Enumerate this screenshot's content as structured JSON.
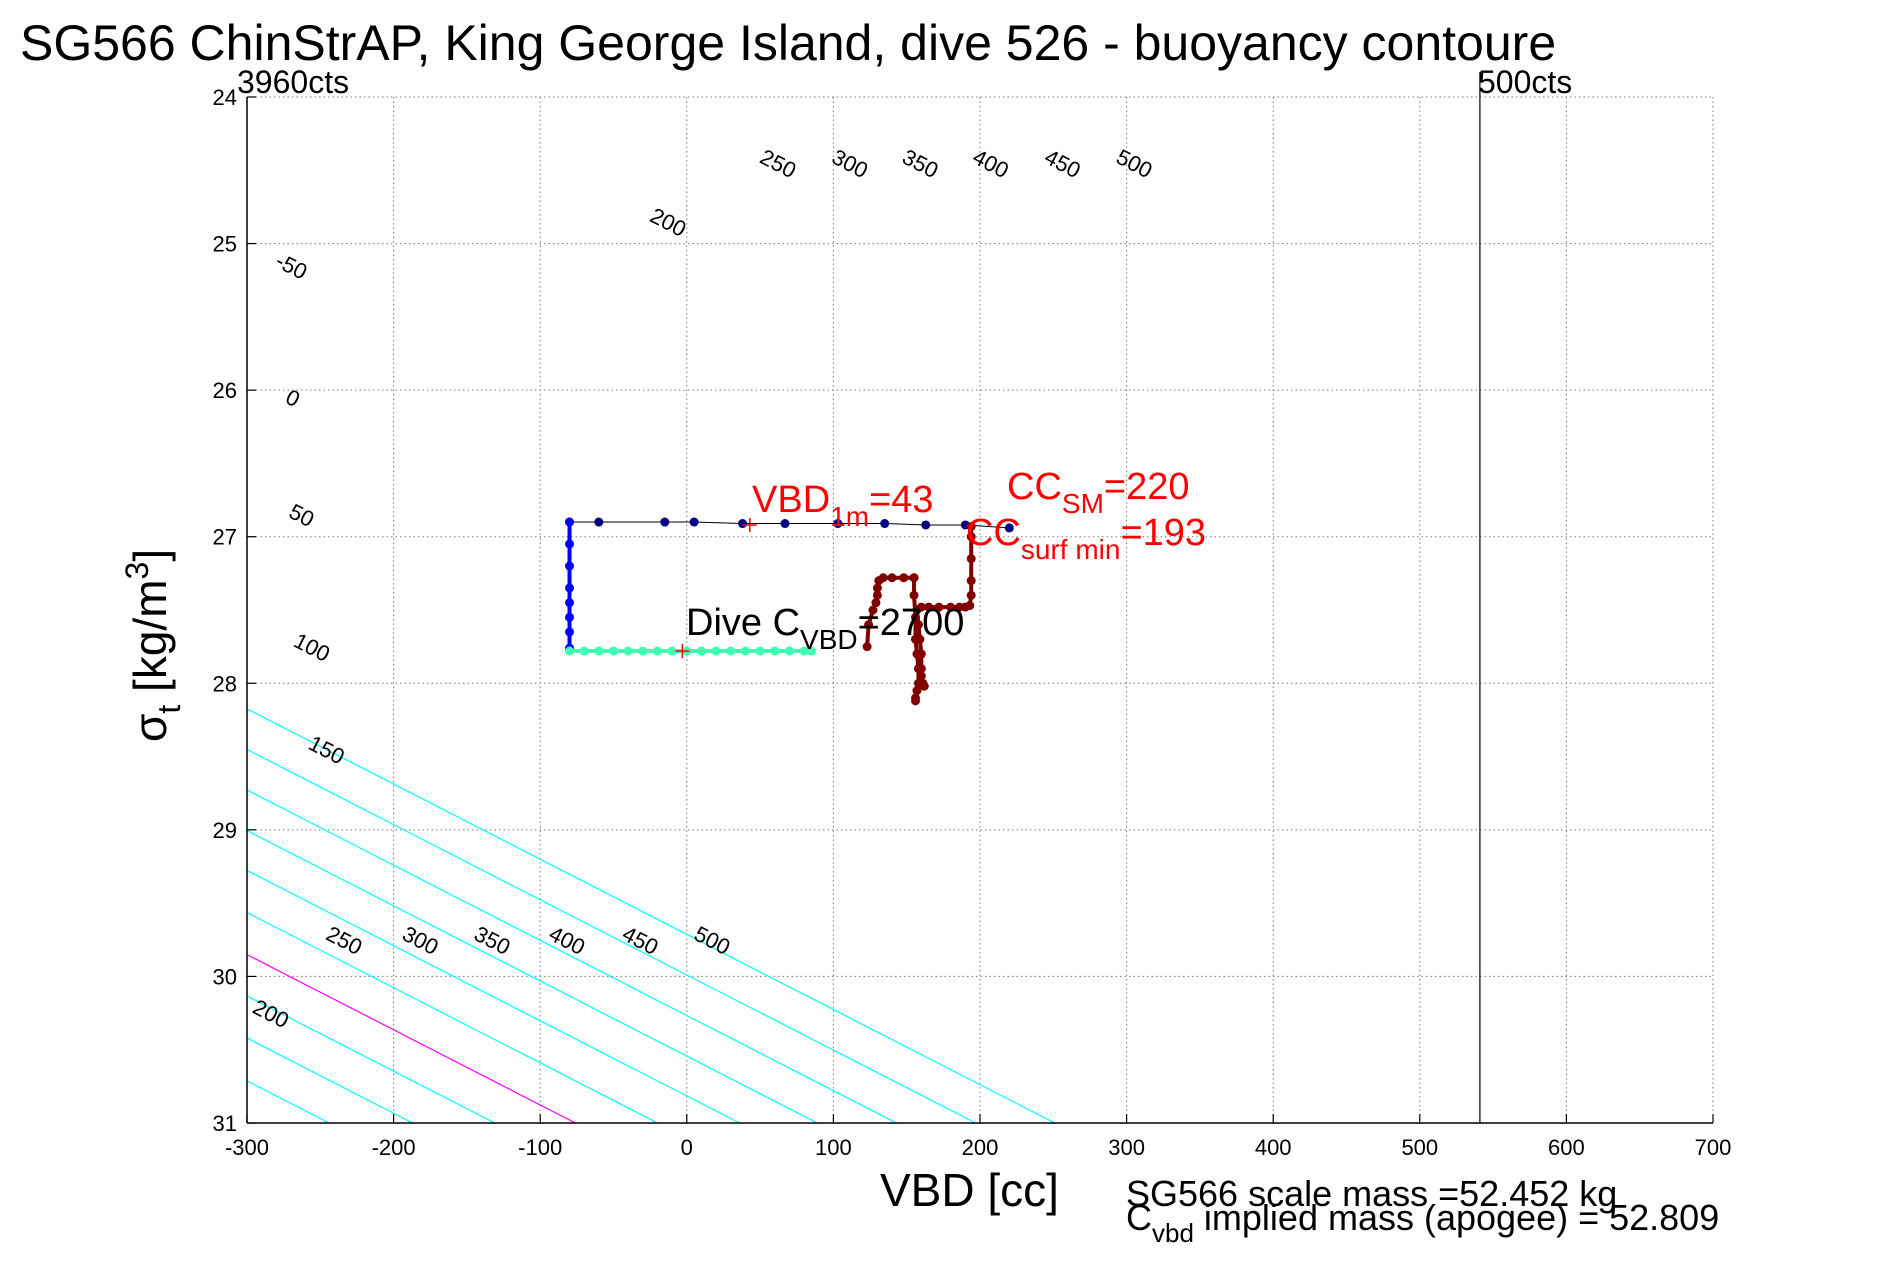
{
  "figure": {
    "title": "SG566 ChinStrAP, King George Island, dive 526 - buoyancy contoure",
    "top_left_label": "3960cts",
    "top_right_label": "500cts",
    "footer": {
      "line1": "SG566 scale mass =52.452 kg",
      "line2_main": "C",
      "line2_sub": "vbd",
      "line2_rest": " implied mass (apogee) = 52.809"
    }
  },
  "annotations": {
    "vbd1m": {
      "main": "VBD",
      "sub": "1m",
      "rest": "=43"
    },
    "ccsm": {
      "main": "CC",
      "sub": "SM",
      "rest": "=220"
    },
    "ccsurf": {
      "main": "CC",
      "sub": "surf min",
      "rest": "=193"
    },
    "divec": {
      "main": "Dive C",
      "sub": "VBD",
      "rest": "=2700"
    }
  },
  "colors": {
    "cyan": "#00ffff",
    "blue": "#0000ff",
    "magenta": "#ff00ff",
    "red": "#ff0000",
    "darkred": "#800000",
    "navy": "#000080",
    "teal": "#40ffb0",
    "background": "#ffffff",
    "axis": "#000000"
  },
  "chart_data": {
    "type": "line",
    "xlabel": "VBD [cc]",
    "ylabel": {
      "main": "σ",
      "sub": "t",
      "rest": " [kg/m",
      "sup": "3",
      "end": "]"
    },
    "xlim": [
      -300,
      700
    ],
    "ylim": [
      24,
      31
    ],
    "y_reversed": true,
    "grid": true,
    "xticks": [
      -300,
      -200,
      -100,
      0,
      100,
      200,
      300,
      400,
      500,
      600,
      700
    ],
    "yticks": [
      24,
      25,
      26,
      27,
      28,
      29,
      30,
      31
    ],
    "xtick_labels": [
      "-300",
      "-200",
      "-100",
      "0",
      "100",
      "200",
      "300",
      "400",
      "500",
      "600",
      "700"
    ],
    "ytick_labels": [
      "24",
      "25",
      "26",
      "27",
      "28",
      "29",
      "30",
      "31"
    ],
    "vertical_line_x": 541,
    "contour_slope_cc_per_sigma": 195,
    "contours": [
      {
        "value": -50,
        "x_at_31": -363,
        "color": "cyan",
        "label": "-50",
        "label_x": -272,
        "label_y": 25.2
      },
      {
        "value": 0,
        "x_at_31": -301,
        "color": "blue",
        "label": "0",
        "label_x": -271,
        "label_y": 26.1
      },
      {
        "value": 50,
        "x_at_31": -244,
        "color": "cyan",
        "label": "50",
        "label_x": -265,
        "label_y": 26.9
      },
      {
        "value": 100,
        "x_at_31": -187,
        "color": "cyan",
        "label": "100",
        "label_x": -258,
        "label_y": 27.8
      },
      {
        "value": 150,
        "x_at_31": -131,
        "color": "cyan",
        "label": "150",
        "label_x": -248,
        "label_y": 28.5
      },
      {
        "value": 200,
        "x_at_31": -76,
        "color": "magenta",
        "label": "200",
        "label_x": -286,
        "label_y": 30.3,
        "label2_x": -15,
        "label2_y": 24.9
      },
      {
        "value": 250,
        "x_at_31": -20,
        "color": "cyan",
        "label": "250",
        "label_x": -236,
        "label_y": 29.8,
        "label2_x": 60,
        "label2_y": 24.5
      },
      {
        "value": 300,
        "x_at_31": 36,
        "color": "cyan",
        "label": "300",
        "label_x": -184,
        "label_y": 29.8,
        "label2_x": 109,
        "label2_y": 24.5
      },
      {
        "value": 350,
        "x_at_31": 89,
        "color": "cyan",
        "label": "350",
        "label_x": -135,
        "label_y": 29.8,
        "label2_x": 157,
        "label2_y": 24.5
      },
      {
        "value": 400,
        "x_at_31": 143,
        "color": "cyan",
        "label": "400",
        "label_x": -84,
        "label_y": 29.8,
        "label2_x": 205,
        "label2_y": 24.5
      },
      {
        "value": 450,
        "x_at_31": 197,
        "color": "cyan",
        "label": "450",
        "label_x": -34,
        "label_y": 29.8,
        "label2_x": 254,
        "label2_y": 24.5
      },
      {
        "value": 500,
        "x_at_31": 251,
        "color": "cyan",
        "label": "500",
        "label_x": 15,
        "label_y": 29.8,
        "label2_x": 303,
        "label2_y": 24.5
      }
    ],
    "series": [
      {
        "name": "apogee-top",
        "color": "navy",
        "x": [
          -80,
          -60,
          -15,
          5,
          38,
          67,
          103,
          135,
          163,
          190,
          220
        ],
        "y": [
          26.9,
          26.9,
          26.9,
          26.9,
          26.91,
          26.91,
          26.91,
          26.91,
          26.92,
          26.92,
          26.94
        ]
      },
      {
        "name": "apogee-left",
        "color": "blue",
        "x": [
          -80,
          -80,
          -80,
          -80,
          -80,
          -80,
          -80,
          -80
        ],
        "y": [
          26.9,
          27.05,
          27.2,
          27.35,
          27.45,
          27.55,
          27.65,
          27.76
        ]
      },
      {
        "name": "apogee-bottom",
        "color": "teal",
        "x": [
          -80,
          -70,
          -60,
          -50,
          -40,
          -30,
          -20,
          -10,
          0,
          10,
          20,
          30,
          40,
          50,
          60,
          70,
          80,
          85
        ],
        "y": [
          27.78,
          27.78,
          27.78,
          27.78,
          27.78,
          27.78,
          27.78,
          27.78,
          27.78,
          27.78,
          27.78,
          27.78,
          27.78,
          27.78,
          27.78,
          27.78,
          27.78,
          27.78
        ]
      },
      {
        "name": "climb-a",
        "color": "darkred",
        "x": [
          123,
          124,
          127,
          129,
          130,
          130,
          131,
          134,
          140,
          148,
          155
        ],
        "y": [
          27.75,
          27.6,
          27.5,
          27.45,
          27.4,
          27.35,
          27.3,
          27.28,
          27.28,
          27.28,
          27.28
        ]
      },
      {
        "name": "climb-b",
        "color": "darkred",
        "x": [
          155,
          155,
          156,
          156,
          157,
          158,
          158,
          157,
          156,
          156
        ],
        "y": [
          27.28,
          27.4,
          27.55,
          27.7,
          27.8,
          27.9,
          28.0,
          28.05,
          28.1,
          28.12
        ]
      },
      {
        "name": "climb-c",
        "color": "darkred",
        "x": [
          157,
          158,
          159,
          160,
          160,
          160,
          161,
          162
        ],
        "y": [
          27.5,
          27.6,
          27.7,
          27.8,
          27.9,
          27.95,
          28.0,
          28.02
        ]
      },
      {
        "name": "climb-d",
        "color": "darkred",
        "x": [
          160,
          165,
          172,
          180,
          186,
          190,
          193,
          194,
          194,
          194,
          194,
          194
        ],
        "y": [
          27.48,
          27.48,
          27.48,
          27.48,
          27.48,
          27.48,
          27.47,
          27.4,
          27.3,
          27.15,
          27.0,
          26.93
        ]
      }
    ],
    "markers": [
      {
        "name": "VBD 1m",
        "x": 43,
        "y": 26.92,
        "color": "red"
      },
      {
        "name": "Dive C_VBD",
        "x": -3,
        "y": 27.78,
        "color": "red"
      }
    ]
  }
}
